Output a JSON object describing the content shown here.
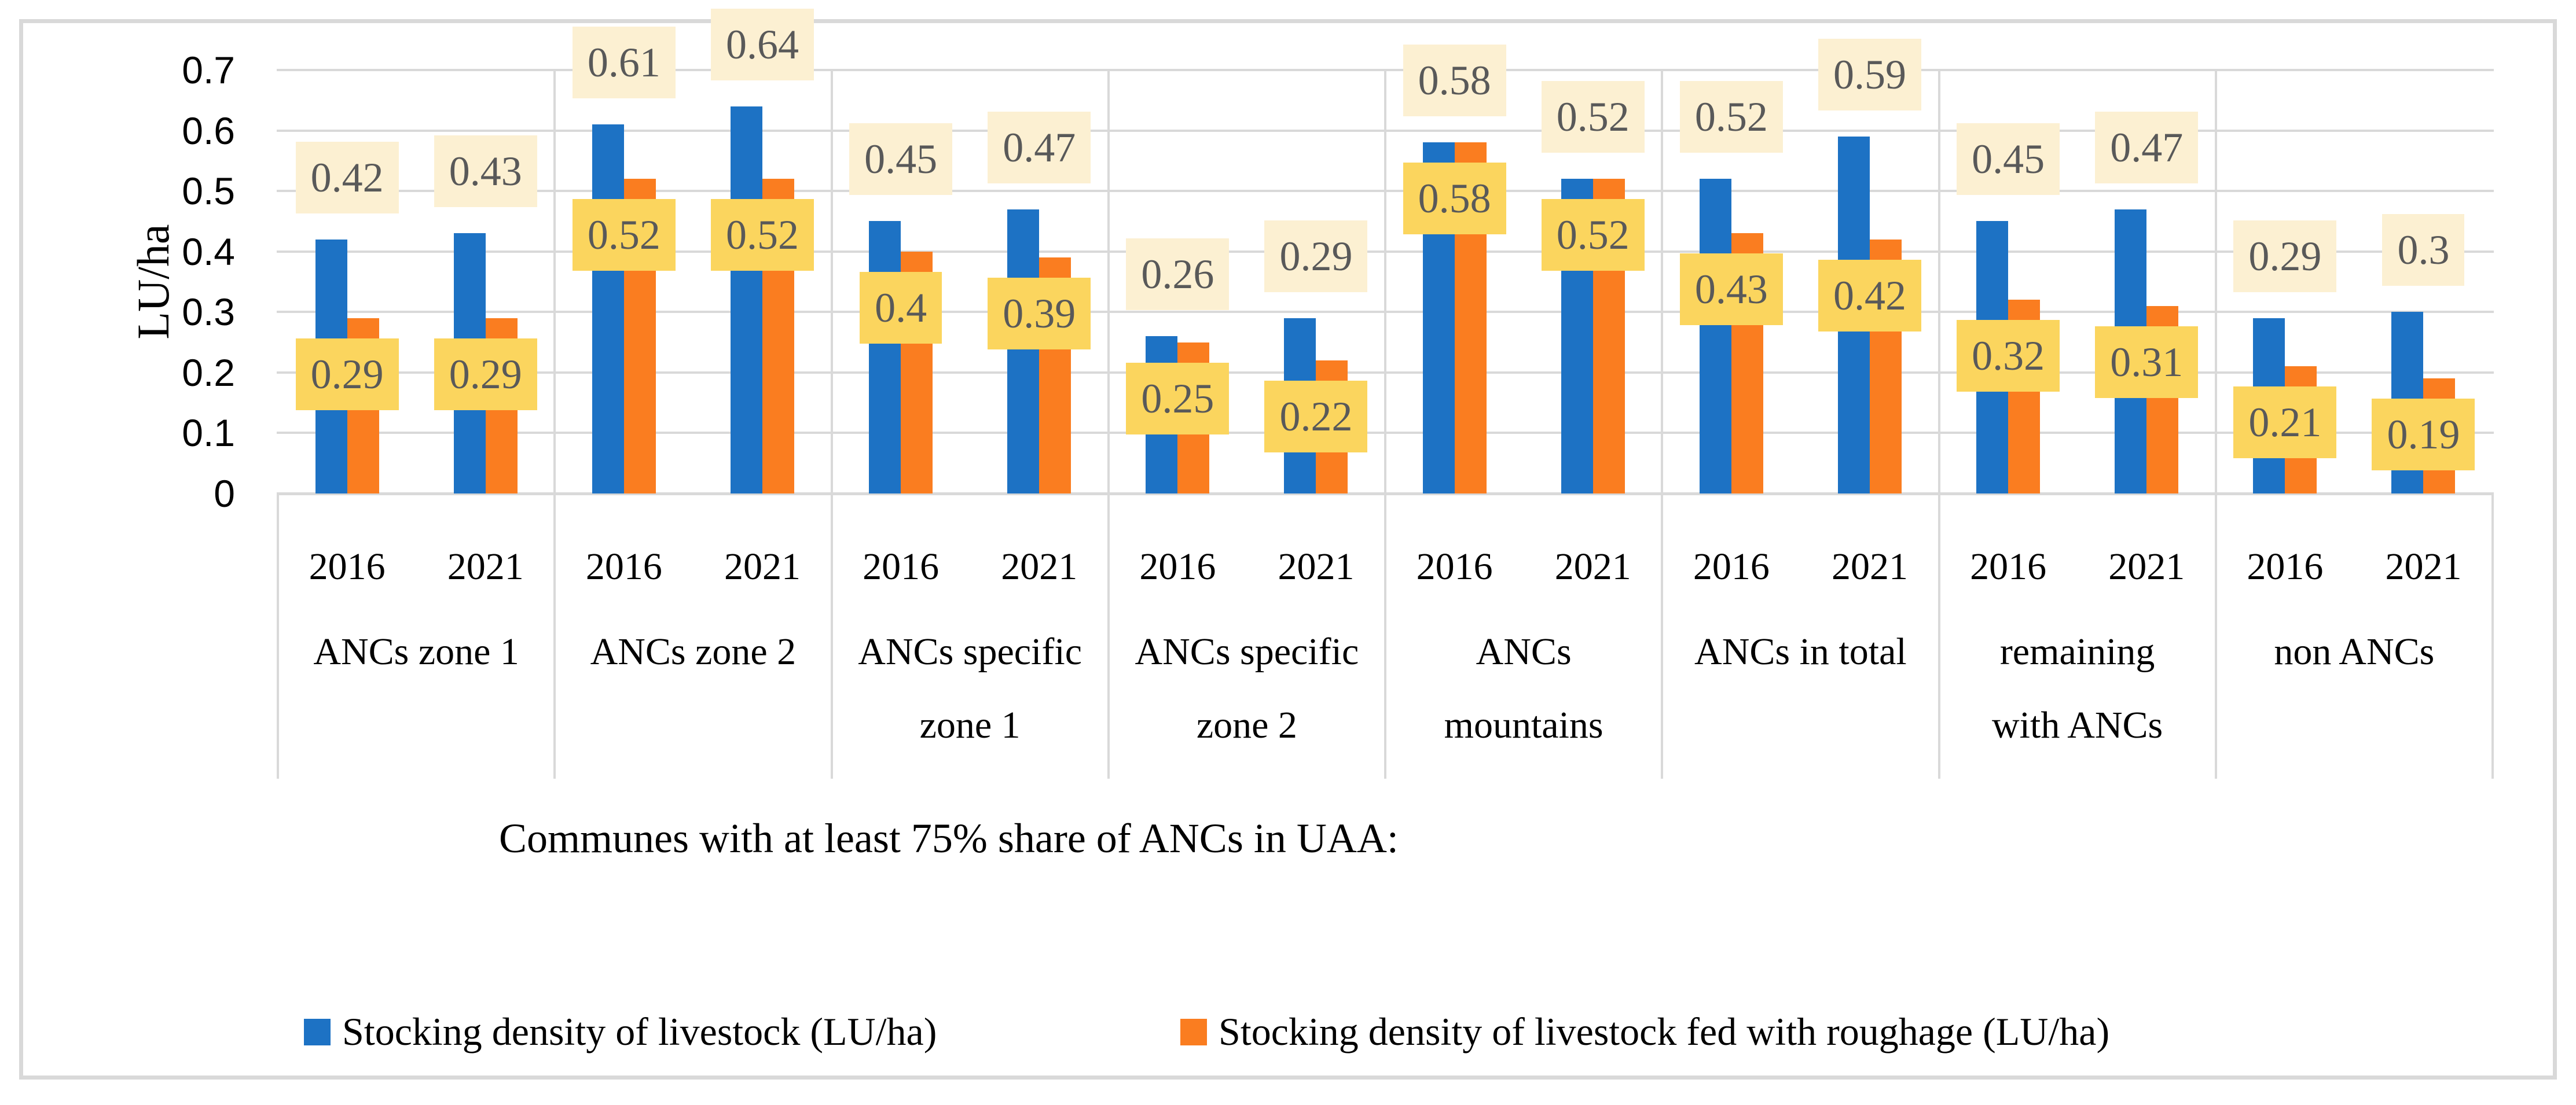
{
  "figure": {
    "caption": "Communes with at least 75% share of ANCs in UAA:",
    "legend": [
      {
        "name": "Stocking density of livestock (LU/ha)",
        "color": "#1D72C4"
      },
      {
        "name": "Stocking density of livestock fed with roughage (LU/ha)",
        "color": "#FA7D20"
      }
    ]
  },
  "chart_data": {
    "type": "bar",
    "title": "",
    "xlabel": "",
    "ylabel": "LU/ha",
    "ylim": [
      0,
      0.7
    ],
    "ytick_labels": [
      "0",
      "0.1",
      "0.2",
      "0.3",
      "0.4",
      "0.5",
      "0.6",
      "0.7"
    ],
    "grid": "horizontal gridlines every 0.1; vertical separator lines between category groups",
    "legend_position": "bottom",
    "series": [
      {
        "name": "Stocking density of livestock (LU/ha)",
        "color": "#1D72C4",
        "data_label_bg": "#FCF0D2"
      },
      {
        "name": "Stocking density of livestock fed with roughage (LU/ha)",
        "color": "#FA7D20",
        "data_label_bg": "#FBD55E"
      }
    ],
    "groups": [
      {
        "label_lines": [
          "ANCs zone 1"
        ],
        "bars": [
          {
            "year": "2016",
            "values": [
              0.42,
              0.29
            ],
            "labels": [
              "0.42",
              "0.29"
            ]
          },
          {
            "year": "2021",
            "values": [
              0.43,
              0.29
            ],
            "labels": [
              "0.43",
              "0.29"
            ]
          }
        ]
      },
      {
        "label_lines": [
          "ANCs zone 2"
        ],
        "bars": [
          {
            "year": "2016",
            "values": [
              0.61,
              0.52
            ],
            "labels": [
              "0.61",
              "0.52"
            ]
          },
          {
            "year": "2021",
            "values": [
              0.64,
              0.52
            ],
            "labels": [
              "0.64",
              "0.52"
            ]
          }
        ]
      },
      {
        "label_lines": [
          "ANCs specific",
          "zone 1"
        ],
        "bars": [
          {
            "year": "2016",
            "values": [
              0.45,
              0.4
            ],
            "labels": [
              "0.45",
              "0.4"
            ]
          },
          {
            "year": "2021",
            "values": [
              0.47,
              0.39
            ],
            "labels": [
              "0.47",
              "0.39"
            ]
          }
        ]
      },
      {
        "label_lines": [
          "ANCs specific",
          "zone 2"
        ],
        "bars": [
          {
            "year": "2016",
            "values": [
              0.26,
              0.25
            ],
            "labels": [
              "0.26",
              "0.25"
            ]
          },
          {
            "year": "2021",
            "values": [
              0.29,
              0.22
            ],
            "labels": [
              "0.29",
              "0.22"
            ]
          }
        ]
      },
      {
        "label_lines": [
          "ANCs",
          "mountains"
        ],
        "bars": [
          {
            "year": "2016",
            "values": [
              0.58,
              0.58
            ],
            "labels": [
              "0.58",
              "0.58"
            ]
          },
          {
            "year": "2021",
            "values": [
              0.52,
              0.52
            ],
            "labels": [
              "0.52",
              "0.52"
            ]
          }
        ]
      },
      {
        "label_lines": [
          "ANCs in total"
        ],
        "bars": [
          {
            "year": "2016",
            "values": [
              0.52,
              0.43
            ],
            "labels": [
              "0.52",
              "0.43"
            ]
          },
          {
            "year": "2021",
            "values": [
              0.59,
              0.42
            ],
            "labels": [
              "0.59",
              "0.42"
            ]
          }
        ]
      },
      {
        "label_lines": [
          "remaining",
          "with ANCs"
        ],
        "bars": [
          {
            "year": "2016",
            "values": [
              0.45,
              0.32
            ],
            "labels": [
              "0.45",
              "0.32"
            ]
          },
          {
            "year": "2021",
            "values": [
              0.47,
              0.31
            ],
            "labels": [
              "0.47",
              "0.31"
            ]
          }
        ]
      },
      {
        "label_lines": [
          "non ANCs"
        ],
        "bars": [
          {
            "year": "2016",
            "values": [
              0.29,
              0.21
            ],
            "labels": [
              "0.29",
              "0.21"
            ]
          },
          {
            "year": "2021",
            "values": [
              0.3,
              0.19
            ],
            "labels": [
              "0.3",
              "0.19"
            ]
          }
        ]
      }
    ]
  },
  "colors": {
    "series_blue": "#1D72C4",
    "series_orange": "#FA7D20",
    "label_bg_blue_series": "#FCF0D2",
    "label_bg_orange_series": "#FBD55E",
    "data_label_text": "#595959",
    "gridline": "#D9D9D9",
    "frame": "#D9D9D9",
    "axis_text": "#000000",
    "background": "#FFFFFF"
  }
}
